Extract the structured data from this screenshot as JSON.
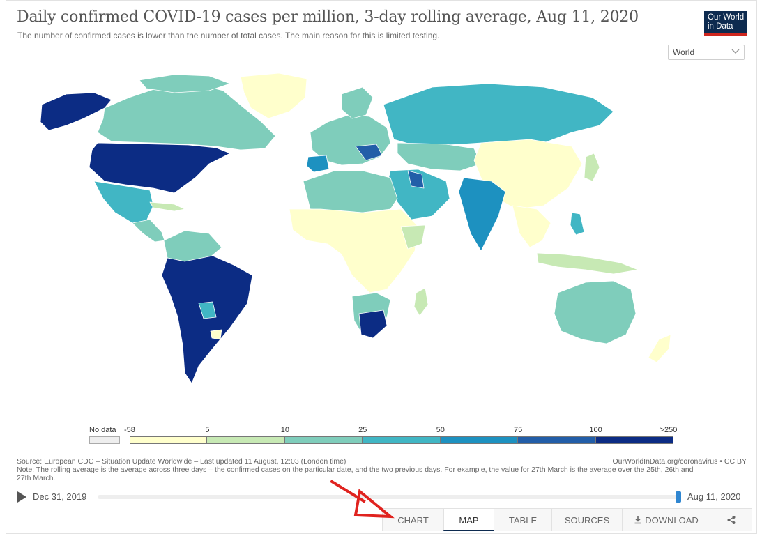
{
  "header": {
    "title": "Daily confirmed COVID-19 cases per million, 3-day rolling average, Aug 11, 2020",
    "subtitle": "The number of confirmed cases is lower than the number of total cases. The main reason for this is limited testing.",
    "logo_line1": "Our World",
    "logo_line2": "in Data"
  },
  "region_selector": {
    "value": "World",
    "icon": "chevron-down-icon"
  },
  "legend": {
    "no_data_label": "No data",
    "no_data_color": "#eeeeee",
    "ticks": [
      "-58",
      "5",
      "10",
      "25",
      "50",
      "75",
      "100",
      ">250"
    ],
    "colors": [
      "#ffffcc",
      "#c7e9b4",
      "#7fcdbb",
      "#41b6c4",
      "#1d91c0",
      "#225ea8",
      "#0c2c84"
    ]
  },
  "footer": {
    "source": "Source: European CDC – Situation Update Worldwide – Last updated 11 August, 12:03 (London time)",
    "note": "Note: The rolling average is the average across three days – the confirmed cases on the particular date, and the two previous days. For example, the value for 27th March is the average over the 25th, 26th and 27th March.",
    "attribution": "OurWorldInData.org/coronavirus • CC BY"
  },
  "timeline": {
    "start_date": "Dec 31, 2019",
    "end_date": "Aug 11, 2020",
    "position": 1.0
  },
  "tabs": {
    "chart": "CHART",
    "map": "MAP",
    "table": "TABLE",
    "sources": "SOURCES",
    "download": "DOWNLOAD",
    "active": "MAP"
  },
  "colors": {
    "accent": "#0d2a4f",
    "logo_stripe": "#ce261e",
    "timeline_handle": "#2f86d1",
    "annotation_arrow": "#e0231f"
  }
}
